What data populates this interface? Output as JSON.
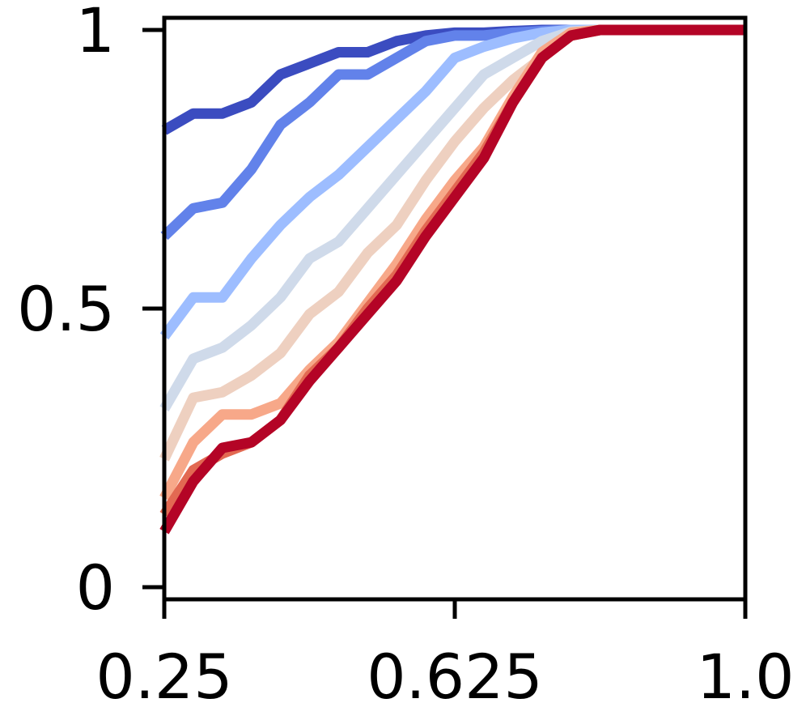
{
  "chart_data": {
    "type": "line",
    "title": "",
    "xlabel": "",
    "ylabel": "",
    "xlim": [
      0.25,
      1.0
    ],
    "ylim": [
      0,
      1
    ],
    "grid": false,
    "legend": "none",
    "x_ticks": [
      {
        "value": 0.25,
        "label": "0.25"
      },
      {
        "value": 0.625,
        "label": "0.625"
      },
      {
        "value": 1.0,
        "label": "1.0"
      }
    ],
    "y_ticks": [
      {
        "value": 0,
        "label": "0"
      },
      {
        "value": 0.5,
        "label": "0.5"
      },
      {
        "value": 1,
        "label": "1"
      }
    ],
    "x": [
      0.25,
      0.2875,
      0.325,
      0.3625,
      0.4,
      0.4375,
      0.475,
      0.5125,
      0.55,
      0.5875,
      0.625,
      0.6625,
      0.7,
      0.7375,
      0.775,
      0.8125,
      0.85,
      0.8875,
      0.925,
      0.9625,
      1.0
    ],
    "series": [
      {
        "color": "#3b4cc0",
        "values": [
          0.82,
          0.85,
          0.85,
          0.87,
          0.92,
          0.94,
          0.96,
          0.96,
          0.98,
          0.99,
          0.995,
          0.995,
          0.998,
          1.0,
          1.0,
          1.0,
          1.0,
          1.0,
          1.0,
          1.0,
          1.0
        ]
      },
      {
        "color": "#6282ea",
        "values": [
          0.63,
          0.68,
          0.69,
          0.75,
          0.83,
          0.87,
          0.92,
          0.92,
          0.95,
          0.98,
          0.99,
          0.99,
          0.995,
          0.998,
          1.0,
          1.0,
          1.0,
          1.0,
          1.0,
          1.0,
          1.0
        ]
      },
      {
        "color": "#9dbdff",
        "values": [
          0.45,
          0.52,
          0.52,
          0.59,
          0.65,
          0.7,
          0.74,
          0.79,
          0.84,
          0.89,
          0.95,
          0.97,
          0.985,
          0.995,
          1.0,
          1.0,
          1.0,
          1.0,
          1.0,
          1.0,
          1.0
        ]
      },
      {
        "color": "#cfdaea",
        "values": [
          0.32,
          0.41,
          0.43,
          0.47,
          0.52,
          0.59,
          0.62,
          0.68,
          0.74,
          0.8,
          0.86,
          0.92,
          0.95,
          0.98,
          0.997,
          1.0,
          1.0,
          1.0,
          1.0,
          1.0,
          1.0
        ]
      },
      {
        "color": "#eed0c0",
        "values": [
          0.23,
          0.34,
          0.35,
          0.38,
          0.42,
          0.49,
          0.53,
          0.6,
          0.65,
          0.73,
          0.8,
          0.86,
          0.91,
          0.95,
          0.99,
          1.0,
          1.0,
          1.0,
          1.0,
          1.0,
          1.0
        ]
      },
      {
        "color": "#f7a889",
        "values": [
          0.16,
          0.26,
          0.31,
          0.31,
          0.33,
          0.39,
          0.44,
          0.51,
          0.58,
          0.66,
          0.73,
          0.79,
          0.88,
          0.96,
          0.995,
          1.0,
          1.0,
          1.0,
          1.0,
          1.0,
          1.0
        ]
      },
      {
        "color": "#e26952",
        "values": [
          0.13,
          0.21,
          0.24,
          0.26,
          0.3,
          0.38,
          0.43,
          0.5,
          0.56,
          0.64,
          0.71,
          0.78,
          0.87,
          0.95,
          0.99,
          1.0,
          1.0,
          1.0,
          1.0,
          1.0,
          1.0
        ]
      },
      {
        "color": "#b40426",
        "values": [
          0.1,
          0.19,
          0.25,
          0.26,
          0.3,
          0.37,
          0.43,
          0.49,
          0.55,
          0.63,
          0.7,
          0.77,
          0.87,
          0.95,
          0.99,
          1.0,
          1.0,
          1.0,
          1.0,
          1.0,
          1.0
        ]
      }
    ]
  }
}
